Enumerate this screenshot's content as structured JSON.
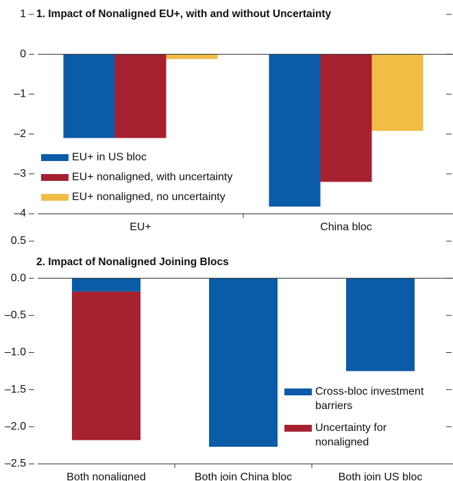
{
  "chart_data": [
    {
      "type": "bar",
      "title": "1. Impact of Nonaligned EU+, with and without Uncertainty",
      "categories": [
        "EU+",
        "China bloc"
      ],
      "series": [
        {
          "name": "EU+ in US bloc",
          "color": "#0a5ba8",
          "values": [
            -2.1,
            -3.82
          ]
        },
        {
          "name": "EU+ nonaligned, with uncertainty",
          "color": "#a6212f",
          "values": [
            -2.1,
            -3.2
          ]
        },
        {
          "name": "EU+ nonaligned, no uncertainty",
          "color": "#f2bc45",
          "values": [
            -0.12,
            -1.92
          ]
        }
      ],
      "ylim": [
        -4,
        1
      ],
      "yticks": [
        {
          "value": -4,
          "label": "–4"
        },
        {
          "value": -3,
          "label": "–3"
        },
        {
          "value": -2,
          "label": "–2"
        },
        {
          "value": -1,
          "label": "–1"
        },
        0,
        1
      ],
      "legend": "lower left"
    },
    {
      "type": "stacked_bar",
      "title": "2. Impact of Nonaligned Joining Blocs",
      "categories": [
        "Both nonaligned",
        "Both join China bloc",
        "Both join US bloc"
      ],
      "series": [
        {
          "name": "Cross-bloc investment barriers",
          "color": "#0a5ba8",
          "values": [
            -0.18,
            -2.27,
            -1.25
          ]
        },
        {
          "name": "Uncertainty for nonaligned",
          "color": "#a6212f",
          "values": [
            -2.0,
            null,
            null
          ]
        }
      ],
      "ylim": [
        -2.5,
        0.5
      ],
      "yticks": [
        {
          "value": -2.5,
          "label": "–2.5"
        },
        {
          "value": -2,
          "label": "–2.0"
        },
        {
          "value": -1.5,
          "label": "–1.5"
        },
        {
          "value": -1,
          "label": "–1.0"
        },
        {
          "value": -0.5,
          "label": "–0.5"
        },
        {
          "value": 0,
          "label": "0.0"
        },
        0.5
      ],
      "legend": "lower right"
    }
  ]
}
